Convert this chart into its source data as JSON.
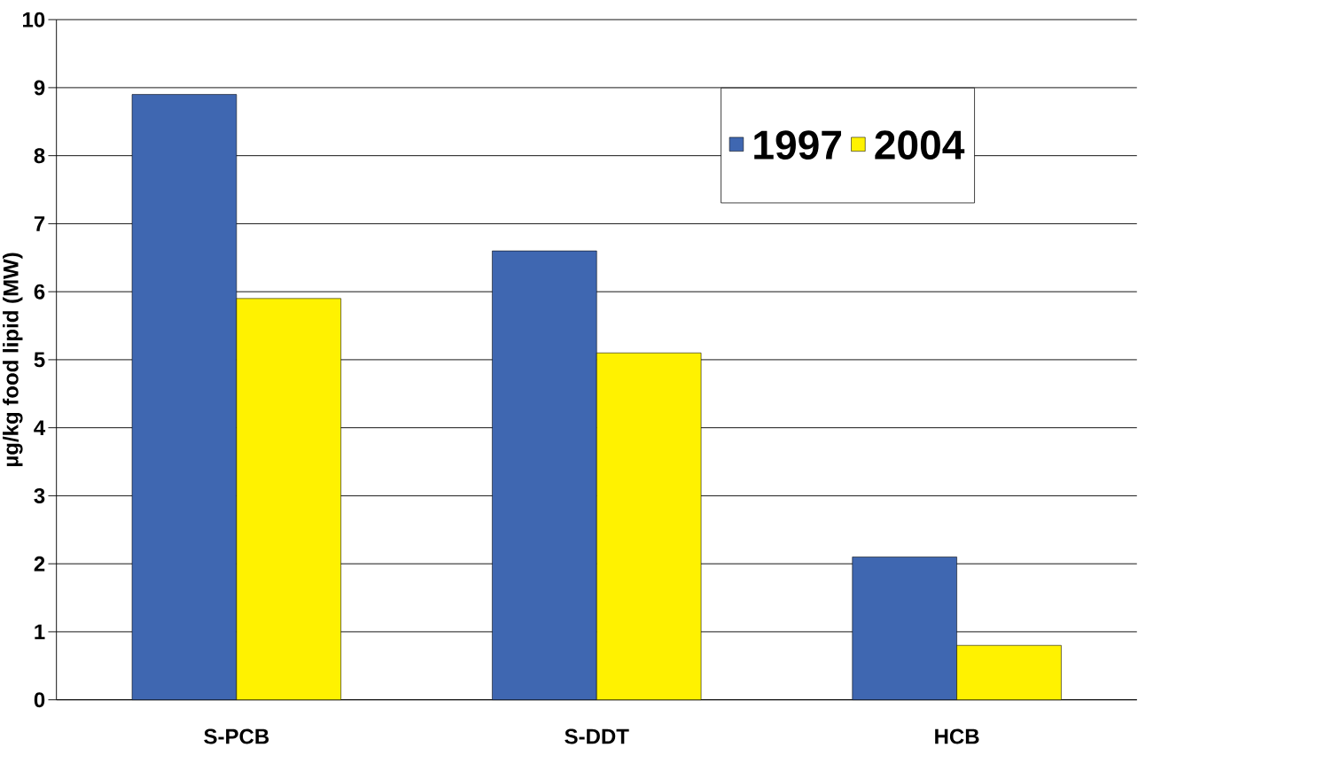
{
  "chart_data": {
    "type": "bar",
    "ylabel": "µg/kg food lipid (MW)",
    "categories": [
      "S-PCB",
      "S-DDT",
      "HCB"
    ],
    "series": [
      {
        "name": "1997",
        "color": "#3f67b1",
        "values": [
          8.9,
          6.6,
          2.1
        ]
      },
      {
        "name": "2004",
        "color": "#fff200",
        "values": [
          5.9,
          5.1,
          0.8
        ]
      }
    ],
    "ylim": [
      0,
      10
    ],
    "yticks": [
      0,
      1,
      2,
      3,
      4,
      5,
      6,
      7,
      8,
      9,
      10
    ],
    "grid": "y",
    "legend": "top right"
  }
}
